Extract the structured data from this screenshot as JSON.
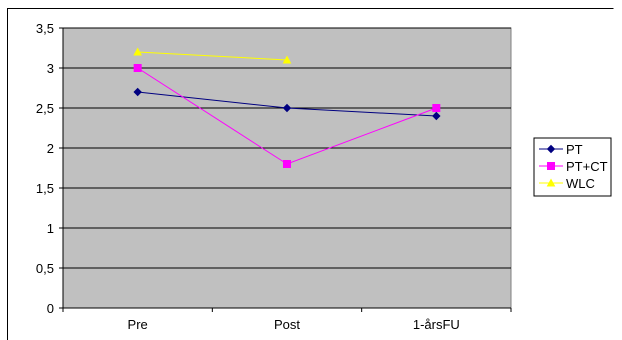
{
  "chart_data": {
    "type": "line",
    "categories": [
      "Pre",
      "Post",
      "1-årsFU"
    ],
    "ylim": [
      0,
      3.5
    ],
    "yticks": [
      "0",
      "0,5",
      "1",
      "1,5",
      "2",
      "2,5",
      "3",
      "3,5"
    ],
    "grid": true,
    "legend_position": "right",
    "plot_background": "#c0c0c0",
    "series": [
      {
        "name": "PT",
        "values": [
          2.7,
          2.5,
          2.4
        ],
        "color": "#000080",
        "marker": "diamond"
      },
      {
        "name": "PT+CT",
        "values": [
          3.0,
          1.8,
          2.5
        ],
        "color": "#ff00ff",
        "marker": "square"
      },
      {
        "name": "WLC",
        "values": [
          3.2,
          3.1,
          null
        ],
        "color": "#ffff00",
        "marker": "triangle"
      }
    ]
  }
}
